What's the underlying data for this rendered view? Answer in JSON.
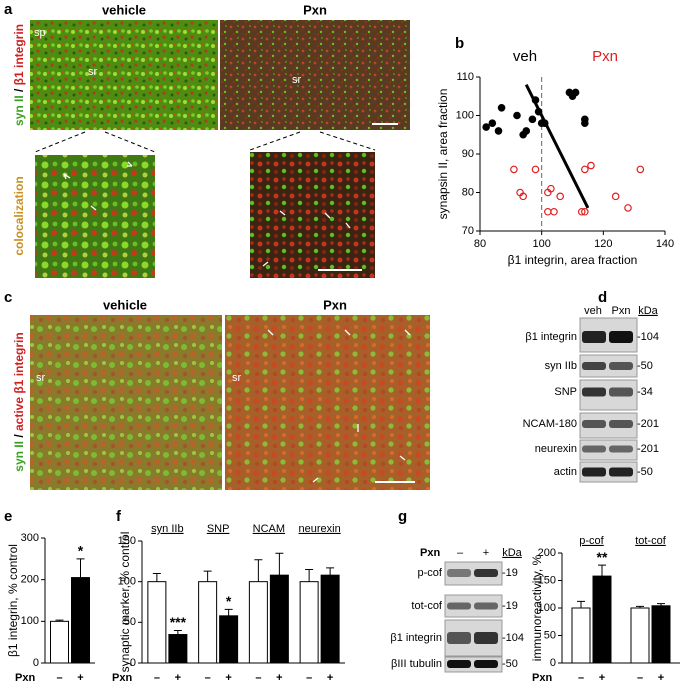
{
  "figure": {
    "a": {
      "label": "a",
      "titles": [
        "vehicle",
        "Pxn"
      ],
      "stain": [
        "syn II",
        " / ",
        "β1 integrin"
      ],
      "side_label": "colocalization",
      "regions": [
        "sp",
        "sr",
        "sr"
      ]
    },
    "b": {
      "label": "b"
    },
    "c": {
      "label": "c",
      "titles": [
        "vehicle",
        "Pxn"
      ],
      "stain": [
        "syn II",
        " / ",
        "active β1 integrin"
      ],
      "regions": [
        "sr",
        "sr"
      ]
    },
    "d": {
      "label": "d",
      "lanes": [
        "veh",
        "Pxn"
      ],
      "unit": "kDa",
      "rows": [
        {
          "label": "β1 integrin",
          "marker": "-104"
        },
        {
          "label": "syn IIb",
          "marker": "-50"
        },
        {
          "label": "SNP",
          "marker": "-34"
        },
        {
          "label": "NCAM-180",
          "marker": "-201"
        },
        {
          "label": "neurexin",
          "marker": "-201"
        },
        {
          "label": "actin",
          "marker": "-50"
        }
      ]
    },
    "e": {
      "label": "e"
    },
    "f": {
      "label": "f"
    },
    "g": {
      "label": "g",
      "lane_title": "Pxn",
      "lanes": [
        "–",
        "+"
      ],
      "unit": "kDa",
      "rows": [
        {
          "label": "p-cof",
          "marker": "-19"
        },
        {
          "label": "tot-cof",
          "marker": "-19"
        },
        {
          "label": "β1 integrin",
          "marker": "-104"
        },
        {
          "label": "βIII tubulin",
          "marker": "-50"
        }
      ]
    }
  },
  "chart_data": [
    {
      "type": "scatter",
      "xlabel": "β1 integrin, area fraction",
      "ylabel": "synapsin II, area fraction",
      "xlim": [
        80,
        140
      ],
      "xticks": [
        80,
        100,
        120,
        140
      ],
      "ylim": [
        70,
        110
      ],
      "yticks": [
        70,
        80,
        90,
        100,
        110
      ],
      "reference_x": 100,
      "fit_line": {
        "x": [
          95,
          115
        ],
        "y": [
          108,
          76
        ]
      },
      "series": [
        {
          "name": "veh",
          "color": "#000000",
          "filled": true,
          "x": [
            82,
            84,
            86,
            87,
            92,
            94,
            95,
            97,
            98,
            99,
            100,
            101,
            109,
            110,
            111,
            114,
            114
          ],
          "y": [
            97,
            98,
            96,
            102,
            100,
            95,
            96,
            99,
            104,
            101,
            98,
            98,
            106,
            105,
            106,
            99,
            98
          ]
        },
        {
          "name": "Pxn",
          "color": "#e02020",
          "filled": false,
          "x": [
            91,
            93,
            94,
            98,
            102,
            102,
            103,
            104,
            106,
            113,
            114,
            114,
            116,
            124,
            128,
            132
          ],
          "y": [
            86,
            80,
            79,
            86,
            75,
            80,
            81,
            75,
            79,
            75,
            75,
            86,
            87,
            79,
            76,
            86
          ]
        }
      ]
    },
    {
      "type": "bar",
      "ylabel": "β1 integrin, % control",
      "x_label": "Pxn",
      "colors": [
        "#ffffff",
        "#000000"
      ],
      "ylim": [
        0,
        300
      ],
      "yticks": [
        0,
        100,
        200,
        300
      ],
      "groups": [
        {
          "categories": [
            "–",
            "+"
          ],
          "values": [
            100,
            205
          ],
          "errors": [
            3,
            45
          ],
          "annotations": [
            null,
            "*"
          ]
        }
      ]
    },
    {
      "type": "bar",
      "ylabel": "synaptic marker, % control",
      "x_label": "Pxn",
      "colors": [
        "#ffffff",
        "#000000"
      ],
      "ylim": [
        0,
        150
      ],
      "yticks": [
        0,
        50,
        100,
        150
      ],
      "groups": [
        {
          "name": "syn IIb",
          "categories": [
            "–",
            "+"
          ],
          "values": [
            100,
            35
          ],
          "errors": [
            10,
            5
          ],
          "annotations": [
            null,
            "***"
          ]
        },
        {
          "name": "SNP",
          "categories": [
            "–",
            "+"
          ],
          "values": [
            100,
            58
          ],
          "errors": [
            13,
            8
          ],
          "annotations": [
            null,
            "*"
          ]
        },
        {
          "name": "NCAM",
          "categories": [
            "–",
            "+"
          ],
          "values": [
            100,
            108
          ],
          "errors": [
            27,
            27
          ],
          "annotations": [
            null,
            null
          ]
        },
        {
          "name": "neurexin",
          "categories": [
            "–",
            "+"
          ],
          "values": [
            100,
            108
          ],
          "errors": [
            15,
            9
          ],
          "annotations": [
            null,
            null
          ]
        }
      ]
    },
    {
      "type": "bar",
      "ylabel": "immunoreactivity, %",
      "x_label": "Pxn",
      "colors": [
        "#ffffff",
        "#000000"
      ],
      "ylim": [
        0,
        200
      ],
      "yticks": [
        0,
        50,
        100,
        150,
        200
      ],
      "groups": [
        {
          "name": "p-cof",
          "categories": [
            "–",
            "+"
          ],
          "values": [
            100,
            158
          ],
          "errors": [
            12,
            20
          ],
          "annotations": [
            null,
            "**"
          ]
        },
        {
          "name": "tot-cof",
          "categories": [
            "–",
            "+"
          ],
          "values": [
            100,
            104
          ],
          "errors": [
            3,
            4
          ],
          "annotations": [
            null,
            null
          ]
        }
      ]
    }
  ]
}
